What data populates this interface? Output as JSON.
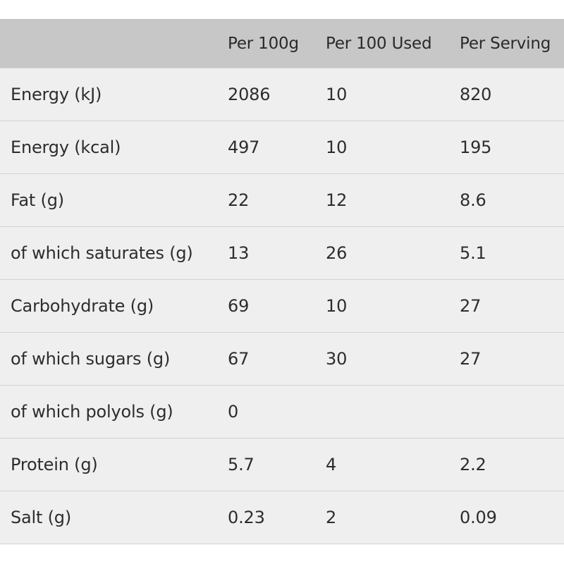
{
  "columns": [
    "",
    "Per 100g",
    "Per 100 Used",
    "Per Serving"
  ],
  "rows": [
    {
      "label": "Energy (kJ)",
      "per_100g": "2086",
      "per_100_used": "10",
      "per_serving": "820"
    },
    {
      "label": "Energy (kcal)",
      "per_100g": "497",
      "per_100_used": "10",
      "per_serving": "195"
    },
    {
      "label": "Fat (g)",
      "per_100g": "22",
      "per_100_used": "12",
      "per_serving": "8.6"
    },
    {
      "label": "of which saturates (g)",
      "per_100g": "13",
      "per_100_used": "26",
      "per_serving": "5.1"
    },
    {
      "label": "Carbohydrate (g)",
      "per_100g": "69",
      "per_100_used": "10",
      "per_serving": "27"
    },
    {
      "label": "of which sugars (g)",
      "per_100g": "67",
      "per_100_used": "30",
      "per_serving": "27"
    },
    {
      "label": "of which polyols (g)",
      "per_100g": "0",
      "per_100_used": "",
      "per_serving": ""
    },
    {
      "label": "Protein (g)",
      "per_100g": "5.7",
      "per_100_used": "4",
      "per_serving": "2.2"
    },
    {
      "label": "Salt (g)",
      "per_100g": "0.23",
      "per_100_used": "2",
      "per_serving": "0.09"
    }
  ]
}
